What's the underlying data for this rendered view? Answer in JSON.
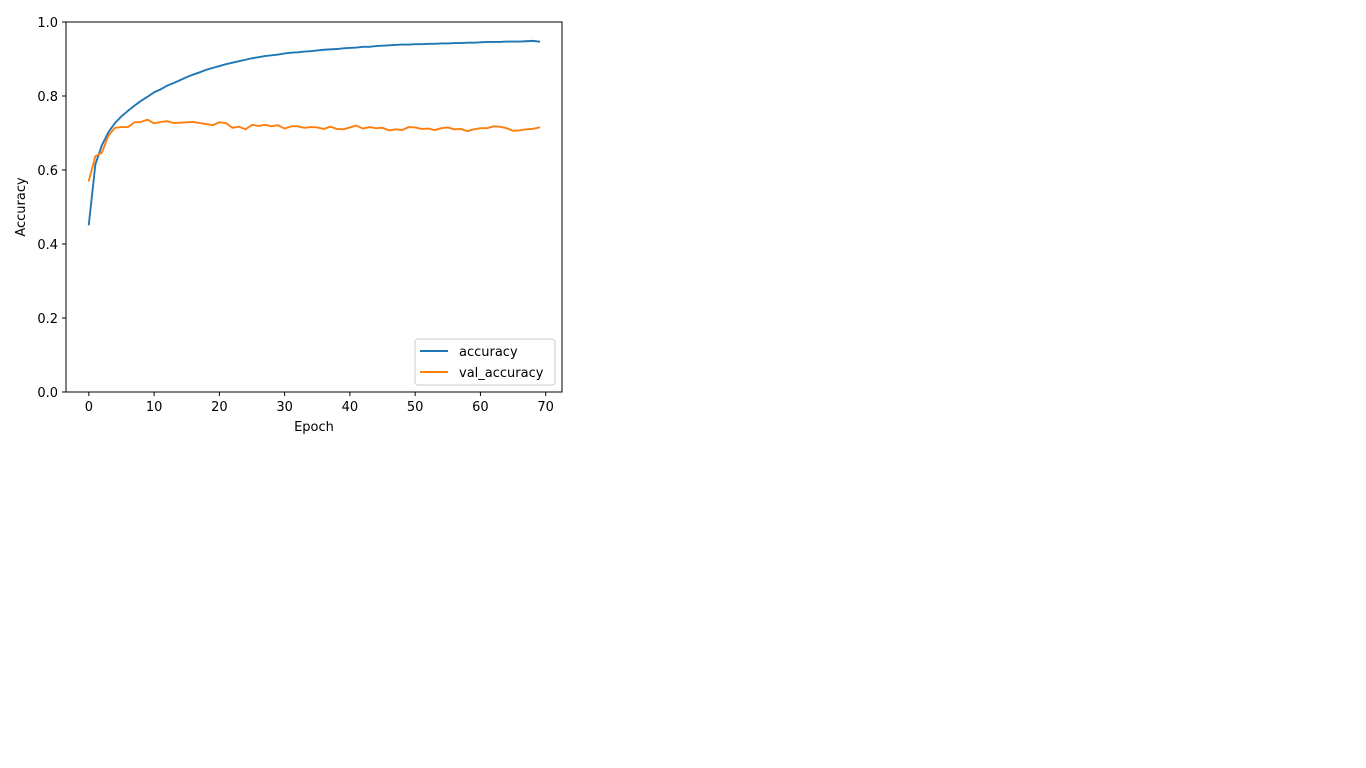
{
  "chart_data": {
    "type": "line",
    "title": "",
    "xlabel": "Epoch",
    "ylabel": "Accuracy",
    "xlim": [
      -3.5,
      72.5
    ],
    "ylim": [
      0.0,
      1.0
    ],
    "xticks": [
      0,
      10,
      20,
      30,
      40,
      50,
      60,
      70
    ],
    "yticks": [
      0.0,
      0.2,
      0.4,
      0.6,
      0.8,
      1.0
    ],
    "grid": false,
    "legend_position": "lower-right",
    "x": [
      0,
      1,
      2,
      3,
      4,
      5,
      6,
      7,
      8,
      9,
      10,
      11,
      12,
      13,
      14,
      15,
      16,
      17,
      18,
      19,
      20,
      21,
      22,
      23,
      24,
      25,
      26,
      27,
      28,
      29,
      30,
      31,
      32,
      33,
      34,
      35,
      36,
      37,
      38,
      39,
      40,
      41,
      42,
      43,
      44,
      45,
      46,
      47,
      48,
      49,
      50,
      51,
      52,
      53,
      54,
      55,
      56,
      57,
      58,
      59,
      60,
      61,
      62,
      63,
      64,
      65,
      66,
      67,
      68,
      69
    ],
    "series": [
      {
        "name": "accuracy",
        "color": "#1f77b4",
        "values": [
          0.453,
          0.615,
          0.667,
          0.702,
          0.727,
          0.745,
          0.76,
          0.774,
          0.787,
          0.798,
          0.81,
          0.818,
          0.828,
          0.835,
          0.843,
          0.851,
          0.858,
          0.864,
          0.871,
          0.876,
          0.881,
          0.886,
          0.89,
          0.894,
          0.898,
          0.902,
          0.905,
          0.908,
          0.91,
          0.912,
          0.915,
          0.917,
          0.918,
          0.92,
          0.921,
          0.923,
          0.925,
          0.926,
          0.927,
          0.929,
          0.93,
          0.931,
          0.933,
          0.933,
          0.935,
          0.936,
          0.937,
          0.938,
          0.939,
          0.939,
          0.94,
          0.94,
          0.941,
          0.941,
          0.942,
          0.942,
          0.943,
          0.943,
          0.944,
          0.944,
          0.945,
          0.946,
          0.946,
          0.946,
          0.947,
          0.947,
          0.947,
          0.948,
          0.949,
          0.947
        ]
      },
      {
        "name": "val_accuracy",
        "color": "#ff7f0e",
        "values": [
          0.571,
          0.637,
          0.647,
          0.693,
          0.714,
          0.716,
          0.716,
          0.729,
          0.73,
          0.736,
          0.726,
          0.73,
          0.732,
          0.727,
          0.728,
          0.729,
          0.73,
          0.727,
          0.724,
          0.721,
          0.729,
          0.727,
          0.714,
          0.717,
          0.71,
          0.722,
          0.719,
          0.722,
          0.718,
          0.721,
          0.712,
          0.718,
          0.718,
          0.714,
          0.716,
          0.715,
          0.711,
          0.717,
          0.711,
          0.71,
          0.715,
          0.72,
          0.712,
          0.716,
          0.713,
          0.714,
          0.707,
          0.71,
          0.708,
          0.716,
          0.715,
          0.711,
          0.712,
          0.708,
          0.713,
          0.715,
          0.71,
          0.711,
          0.705,
          0.71,
          0.713,
          0.713,
          0.718,
          0.717,
          0.713,
          0.706,
          0.707,
          0.71,
          0.711,
          0.715
        ]
      }
    ]
  }
}
